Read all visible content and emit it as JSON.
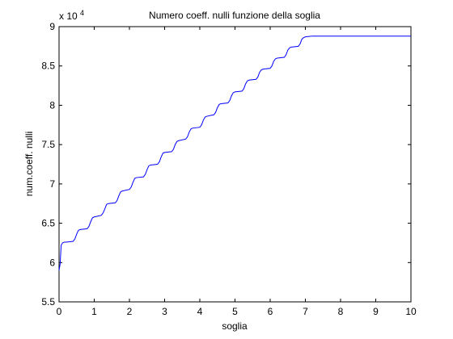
{
  "chart_data": {
    "type": "line",
    "title": "Numero coeff. nulli funzione della soglia",
    "xlabel": "soglia",
    "ylabel": "num.coeff. nulli",
    "exponent_label": "x 10",
    "exponent_power": "4",
    "xlim": [
      0,
      10
    ],
    "ylim": [
      5.5,
      9
    ],
    "x_ticks": [
      0,
      1,
      2,
      3,
      4,
      5,
      6,
      7,
      8,
      9,
      10
    ],
    "x_tick_labels": [
      "0",
      "1",
      "2",
      "3",
      "4",
      "5",
      "6",
      "7",
      "8",
      "9",
      "10"
    ],
    "y_ticks": [
      5.5,
      6,
      6.5,
      7,
      7.5,
      8,
      8.5,
      9
    ],
    "y_tick_labels": [
      "5.5",
      "6",
      "6.5",
      "7",
      "7.5",
      "8",
      "8.5",
      "9"
    ],
    "grid": false,
    "line_color": "#0000ff",
    "series": [
      {
        "x": [
          0,
          0.03,
          0.06,
          0.1,
          0.15,
          0.2,
          0.4,
          0.45,
          0.5,
          0.55,
          0.6,
          0.8,
          0.85,
          0.9,
          0.95,
          1.0,
          1.2,
          1.25,
          1.3,
          1.35,
          1.4,
          1.6,
          1.65,
          1.7,
          1.75,
          1.8,
          2.0,
          2.05,
          2.1,
          2.15,
          2.2,
          2.4,
          2.45,
          2.5,
          2.55,
          2.6,
          2.8,
          2.85,
          2.9,
          2.95,
          3.0,
          3.2,
          3.25,
          3.3,
          3.35,
          3.4,
          3.6,
          3.65,
          3.7,
          3.75,
          3.8,
          4.0,
          4.05,
          4.1,
          4.15,
          4.2,
          4.4,
          4.45,
          4.5,
          4.55,
          4.6,
          4.8,
          4.85,
          4.9,
          4.95,
          5.0,
          5.2,
          5.25,
          5.3,
          5.35,
          5.4,
          5.6,
          5.65,
          5.7,
          5.75,
          5.8,
          6.0,
          6.05,
          6.1,
          6.15,
          6.2,
          6.4,
          6.45,
          6.5,
          6.55,
          6.6,
          6.8,
          6.85,
          6.9,
          6.95,
          7.0,
          7.2,
          7.25,
          7.3,
          7.35,
          7.4,
          7.6,
          7.65,
          7.7,
          7.75,
          7.8,
          8.0,
          8.05,
          8.1,
          8.15,
          8.2,
          8.4,
          8.45,
          8.5,
          8.55,
          8.6,
          8.8,
          8.85,
          8.9,
          8.95,
          9.0,
          9.2,
          9.25,
          9.3,
          9.35,
          9.4,
          9.6,
          9.65,
          9.7,
          9.75,
          9.8,
          10.0
        ],
        "values": [
          5.9,
          5.98,
          6.22,
          6.25,
          6.26,
          6.26,
          6.27,
          6.3,
          6.36,
          6.41,
          6.42,
          6.43,
          6.46,
          6.52,
          6.57,
          6.58,
          6.6,
          6.63,
          6.68,
          6.74,
          6.75,
          6.76,
          6.79,
          6.85,
          6.9,
          6.91,
          6.93,
          6.96,
          7.02,
          7.07,
          7.08,
          7.09,
          7.12,
          7.18,
          7.23,
          7.24,
          7.25,
          7.28,
          7.34,
          7.39,
          7.4,
          7.41,
          7.44,
          7.5,
          7.54,
          7.55,
          7.57,
          7.6,
          7.66,
          7.7,
          7.71,
          7.72,
          7.75,
          7.81,
          7.85,
          7.86,
          7.88,
          7.91,
          7.97,
          8.01,
          8.02,
          8.03,
          8.06,
          8.12,
          8.16,
          8.17,
          8.18,
          8.21,
          8.27,
          8.31,
          8.32,
          8.33,
          8.36,
          8.42,
          8.45,
          8.46,
          8.47,
          8.5,
          8.56,
          8.59,
          8.6,
          8.61,
          8.64,
          8.7,
          8.73,
          8.74,
          8.75,
          8.78,
          8.84,
          8.86,
          8.87,
          8.88,
          8.88,
          8.88,
          8.88,
          8.88,
          8.88,
          8.88,
          8.88,
          8.88,
          8.88,
          8.88,
          8.88,
          8.88,
          8.88,
          8.88,
          8.88,
          8.88,
          8.88,
          8.88,
          8.88,
          8.88,
          8.88,
          8.88,
          8.88,
          8.88,
          8.88,
          8.88,
          8.88,
          8.88,
          8.88,
          8.88,
          8.88,
          8.88,
          8.88,
          8.88,
          8.88
        ]
      }
    ]
  }
}
